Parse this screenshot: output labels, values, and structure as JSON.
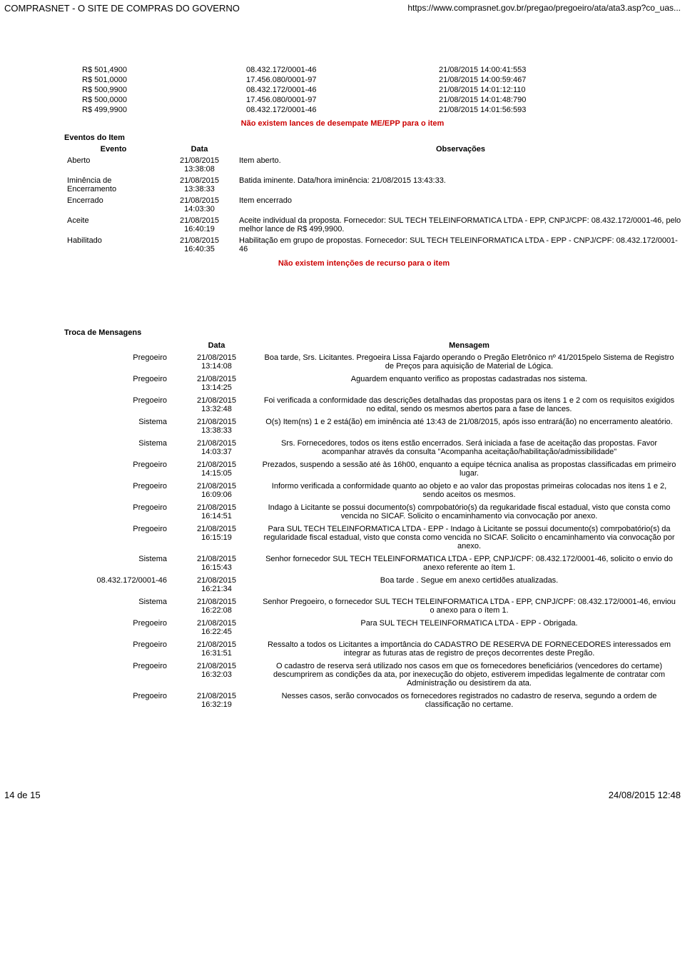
{
  "header": {
    "site_title": "COMPRASNET - O SITE DE COMPRAS DO GOVERNO",
    "url": "https://www.comprasnet.gov.br/pregao/pregoeiro/ata/ata3.asp?co_uas..."
  },
  "bids": {
    "rows": [
      {
        "price": "R$ 501,4900",
        "doc": "08.432.172/0001-46",
        "ts": "21/08/2015 14:00:41:553"
      },
      {
        "price": "R$ 501,0000",
        "doc": "17.456.080/0001-97",
        "ts": "21/08/2015 14:00:59:467"
      },
      {
        "price": "R$ 500,9900",
        "doc": "08.432.172/0001-46",
        "ts": "21/08/2015 14:01:12:110"
      },
      {
        "price": "R$ 500,0000",
        "doc": "17.456.080/0001-97",
        "ts": "21/08/2015 14:01:48:790"
      },
      {
        "price": "R$ 499,9900",
        "doc": "08.432.172/0001-46",
        "ts": "21/08/2015 14:01:56:593"
      }
    ]
  },
  "notice_tiebreak": "Não existem lances de desempate ME/EPP para o item",
  "events": {
    "title": "Eventos do Item",
    "headers": {
      "evento": "Evento",
      "data": "Data",
      "obs": "Observações"
    },
    "rows": [
      {
        "evento": "Aberto",
        "data": "21/08/2015 13:38:08",
        "obs": "Item aberto."
      },
      {
        "evento": "Iminência de Encerramento",
        "data": "21/08/2015 13:38:33",
        "obs": "Batida iminente. Data/hora iminência: 21/08/2015 13:43:33."
      },
      {
        "evento": "Encerrado",
        "data": "21/08/2015 14:03:30",
        "obs": "Item encerrado"
      },
      {
        "evento": "Aceite",
        "data": "21/08/2015 16:40:19",
        "obs": "Aceite individual da proposta. Fornecedor: SUL TECH TELEINFORMATICA LTDA - EPP, CNPJ/CPF: 08.432.172/0001-46, pelo melhor lance de R$ 499,9900."
      },
      {
        "evento": "Habilitado",
        "data": "21/08/2015 16:40:35",
        "obs": "Habilitação em grupo de propostas. Fornecedor: SUL TECH TELEINFORMATICA LTDA - EPP - CNPJ/CPF: 08.432.172/0001-46"
      }
    ]
  },
  "notice_recurso": "Não existem intenções de recurso para o item",
  "messages": {
    "title": "Troca de Mensagens",
    "headers": {
      "data": "Data",
      "msg": "Mensagem"
    },
    "rows": [
      {
        "sender": "Pregoeiro",
        "data": "21/08/2015 13:14:08",
        "msg": "Boa tarde, Srs. Licitantes. Pregoeira Lissa Fajardo operando o Pregão Eletrônico nº 41/2015pelo Sistema de Registro de Preços para aquisição de Material de Lógica."
      },
      {
        "sender": "Pregoeiro",
        "data": "21/08/2015 13:14:25",
        "msg": "Aguardem enquanto verifico as propostas cadastradas nos sistema."
      },
      {
        "sender": "Pregoeiro",
        "data": "21/08/2015 13:32:48",
        "msg": "Foi verificada a conformidade das descrições detalhadas das propostas para os itens 1 e 2 com os requisitos exigidos no edital, sendo os mesmos abertos para a fase de lances."
      },
      {
        "sender": "Sistema",
        "data": "21/08/2015 13:38:33",
        "msg": "O(s) Item(ns) 1 e 2 está(ão) em iminência até 13:43 de 21/08/2015, após isso entrará(ão) no encerramento aleatório."
      },
      {
        "sender": "Sistema",
        "data": "21/08/2015 14:03:37",
        "msg": "Srs. Fornecedores, todos os itens estão encerrados. Será iniciada a fase de aceitação das propostas. Favor acompanhar através da consulta \"Acompanha aceitação/habilitação/admissibilidade\""
      },
      {
        "sender": "Pregoeiro",
        "data": "21/08/2015 14:15:05",
        "msg": "Prezados, suspendo a sessão até às 16h00, enquanto a equipe técnica analisa as propostas classificadas em primeiro lugar."
      },
      {
        "sender": "Pregoeiro",
        "data": "21/08/2015 16:09:06",
        "msg": "Informo verificada a conformidade quanto ao objeto e ao valor das propostas primeiras colocadas nos itens 1 e 2, sendo aceitos os mesmos."
      },
      {
        "sender": "Pregoeiro",
        "data": "21/08/2015 16:14:51",
        "msg": "Indago à Licitante se possui documento(s) comrpobatório(s) da regukaridade fiscal estadual, visto que consta como vencida no SICAF. Solicito o encaminhamento via convocação por anexo."
      },
      {
        "sender": "Pregoeiro",
        "data": "21/08/2015 16:15:19",
        "msg": "Para SUL TECH TELEINFORMATICA LTDA - EPP - Indago à Licitante se possui documento(s) comrpobatório(s) da regularidade fiscal estadual, visto que consta como vencida no SICAF. Solicito o encaminhamento via convocação por anexo."
      },
      {
        "sender": "Sistema",
        "data": "21/08/2015 16:15:43",
        "msg": "Senhor fornecedor SUL TECH TELEINFORMATICA LTDA - EPP, CNPJ/CPF: 08.432.172/0001-46, solicito o envio do anexo referente ao ítem 1."
      },
      {
        "sender": "08.432.172/0001-46",
        "data": "21/08/2015 16:21:34",
        "msg": "Boa tarde . Segue em anexo certidões atualizadas."
      },
      {
        "sender": "Sistema",
        "data": "21/08/2015 16:22:08",
        "msg": "Senhor Pregoeiro, o fornecedor SUL TECH TELEINFORMATICA LTDA - EPP, CNPJ/CPF: 08.432.172/0001-46, enviou o anexo para o ítem 1."
      },
      {
        "sender": "Pregoeiro",
        "data": "21/08/2015 16:22:45",
        "msg": "Para SUL TECH TELEINFORMATICA LTDA - EPP - Obrigada."
      },
      {
        "sender": "Pregoeiro",
        "data": "21/08/2015 16:31:51",
        "msg": "Ressalto a todos os Licitantes a importância do CADASTRO DE RESERVA DE FORNECEDORES interessados em integrar as futuras atas de registro de preços decorrentes deste Pregão."
      },
      {
        "sender": "Pregoeiro",
        "data": "21/08/2015 16:32:03",
        "msg": "O cadastro de reserva será utilizado nos casos em que os fornecedores beneficiários (vencedores do certame) descumprirem as condições da ata, por inexecução do objeto, estiverem impedidas legalmente de contratar com Administração ou desistirem da ata."
      },
      {
        "sender": "Pregoeiro",
        "data": "21/08/2015 16:32:19",
        "msg": "Nesses casos, serão convocados os fornecedores registrados no cadastro de reserva, segundo a ordem de classificação no certame."
      }
    ]
  },
  "footer": {
    "page": "14 de 15",
    "printed": "24/08/2015 12:48"
  }
}
